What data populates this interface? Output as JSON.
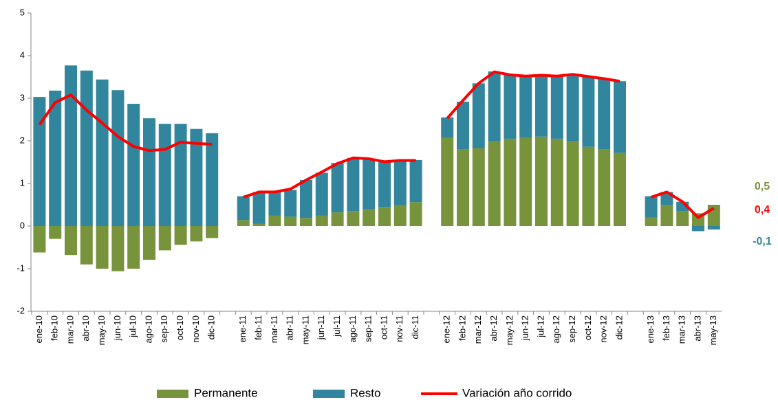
{
  "chart_data": {
    "type": "bar-line",
    "categories": [
      "ene-10",
      "feb-10",
      "mar-10",
      "abr-10",
      "may-10",
      "jun-10",
      "jul-10",
      "ago-10",
      "sep-10",
      "oct-10",
      "nov-10",
      "dic-10",
      null,
      "ene-11",
      "feb-11",
      "mar-11",
      "abr-11",
      "may-11",
      "jun-11",
      "jul-11",
      "ago-11",
      "sep-11",
      "oct-11",
      "nov-11",
      "dic-11",
      null,
      "ene-12",
      "feb-12",
      "mar-12",
      "abr-12",
      "may-12",
      "jun-12",
      "jul-12",
      "ago-12",
      "sep-12",
      "oct-12",
      "nov-12",
      "dic-12",
      null,
      "ene-13",
      "feb-13",
      "mar-13",
      "abr-13",
      "may-13"
    ],
    "series": [
      {
        "name": "Permanente",
        "type": "bar",
        "color": "#77933c",
        "values": [
          -0.62,
          -0.3,
          -0.68,
          -0.9,
          -1.0,
          -1.06,
          -1.0,
          -0.79,
          -0.57,
          -0.44,
          -0.36,
          -0.28,
          null,
          0.14,
          0.05,
          0.25,
          0.22,
          0.19,
          0.25,
          0.32,
          0.35,
          0.39,
          0.45,
          0.5,
          0.56,
          null,
          2.07,
          1.8,
          1.83,
          2.0,
          2.05,
          2.07,
          2.1,
          2.05,
          2.0,
          1.86,
          1.8,
          1.72,
          null,
          0.2,
          0.5,
          0.35,
          0.3,
          0.5
        ],
        "value_labels": [
          null,
          null,
          null,
          null,
          null,
          null,
          null,
          null,
          null,
          null,
          null,
          null,
          null,
          null,
          null,
          null,
          null,
          null,
          null,
          null,
          null,
          null,
          null,
          null,
          null,
          null,
          null,
          null,
          null,
          null,
          null,
          null,
          null,
          null,
          null,
          null,
          null,
          null,
          null,
          null,
          null,
          null,
          null,
          "0,5"
        ]
      },
      {
        "name": "Resto",
        "type": "bar",
        "color": "#31859c",
        "values": [
          3.03,
          3.18,
          3.77,
          3.65,
          3.44,
          3.19,
          2.87,
          2.53,
          2.4,
          2.4,
          2.28,
          2.18,
          null,
          0.56,
          0.75,
          0.55,
          0.63,
          0.89,
          1.0,
          1.16,
          1.25,
          1.19,
          1.06,
          1.05,
          0.99,
          null,
          0.48,
          1.12,
          1.52,
          1.63,
          1.5,
          1.43,
          1.42,
          1.45,
          1.55,
          1.64,
          1.65,
          1.68,
          null,
          0.5,
          0.3,
          0.22,
          -0.12,
          -0.08
        ],
        "value_labels": [
          null,
          null,
          null,
          null,
          null,
          null,
          null,
          null,
          null,
          null,
          null,
          null,
          null,
          null,
          null,
          null,
          null,
          null,
          null,
          null,
          null,
          null,
          null,
          null,
          null,
          null,
          null,
          null,
          null,
          null,
          null,
          null,
          null,
          null,
          null,
          null,
          null,
          null,
          null,
          null,
          null,
          null,
          null,
          "-0,1"
        ]
      },
      {
        "name": "Variación año corrido",
        "type": "line",
        "color": "#ff0000",
        "values": [
          2.38,
          2.9,
          3.08,
          2.72,
          2.42,
          2.1,
          1.87,
          1.77,
          1.8,
          1.97,
          1.94,
          1.92,
          null,
          0.68,
          0.8,
          0.8,
          0.87,
          1.08,
          1.27,
          1.47,
          1.6,
          1.58,
          1.51,
          1.54,
          1.54,
          null,
          2.53,
          2.95,
          3.35,
          3.62,
          3.55,
          3.52,
          3.54,
          3.52,
          3.56,
          3.51,
          3.46,
          3.4,
          null,
          0.68,
          0.8,
          0.57,
          0.2,
          0.42
        ],
        "value_labels": [
          null,
          null,
          null,
          null,
          null,
          null,
          null,
          null,
          null,
          null,
          null,
          null,
          null,
          null,
          null,
          null,
          null,
          null,
          null,
          null,
          null,
          null,
          null,
          null,
          null,
          null,
          null,
          null,
          null,
          null,
          null,
          null,
          null,
          null,
          null,
          null,
          null,
          null,
          null,
          null,
          null,
          null,
          null,
          "0,4"
        ]
      }
    ],
    "ylim": [
      -2,
      5
    ],
    "yticks": [
      -2,
      -1,
      0,
      1,
      2,
      3,
      4,
      5
    ],
    "grid": false,
    "legend": "bottom"
  }
}
